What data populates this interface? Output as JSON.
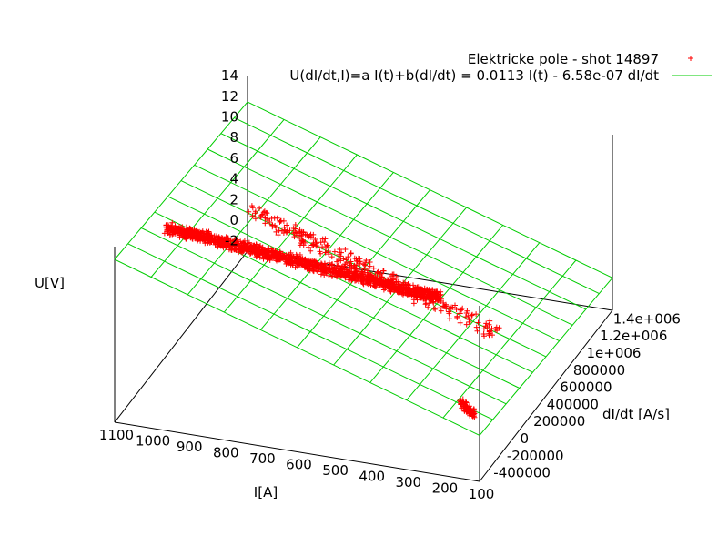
{
  "chart_data": {
    "type": "scatter",
    "title": "",
    "xlabel": "I[A]",
    "ylabel": "dI/dt [A/s]",
    "zlabel": "U[V]",
    "x_ticks": [
      "1100",
      "1000",
      "900",
      "800",
      "700",
      "600",
      "500",
      "400",
      "300",
      "200",
      "100"
    ],
    "y_ticks": [
      "-400000",
      "-200000",
      "0",
      "200000",
      "400000",
      "600000",
      "800000",
      "1e+006",
      "1.2e+006",
      "1.4e+006"
    ],
    "z_ticks": [
      "14",
      "12",
      "10",
      "8",
      "6",
      "4",
      "2",
      "0",
      "-2"
    ],
    "xlim": [
      100,
      1100
    ],
    "ylim": [
      -500000,
      1500000
    ],
    "zlim": [
      -3,
      14
    ],
    "grid": true,
    "legend_position": "top-right",
    "series": [
      {
        "name": "Elektricke pole - shot 14897",
        "kind": "points",
        "color": "#ff0000",
        "marker": "+",
        "clusters": [
          {
            "x_range": [
              300,
              1050
            ],
            "y_center": 0,
            "y_spread": 30000,
            "z": [
              9.5,
              12
            ],
            "count": 1400
          },
          {
            "x_range": [
              220,
              900
            ],
            "y_center": 420000,
            "y_spread": 60000,
            "z": [
              3,
              11
            ],
            "count": 300
          },
          {
            "x_range": [
              150,
              190
            ],
            "y_center": -300000,
            "y_spread": 15000,
            "z": [
              1.5,
              2.5
            ],
            "count": 80
          }
        ]
      },
      {
        "name": "U(dI/dt,I)=a I(t)+b(dI/dt) =  0.0113 I(t) - 6.58e-07 dI/dt",
        "kind": "surface",
        "color": "#00cc00",
        "a": 0.0113,
        "b": -6.58e-07
      }
    ]
  }
}
